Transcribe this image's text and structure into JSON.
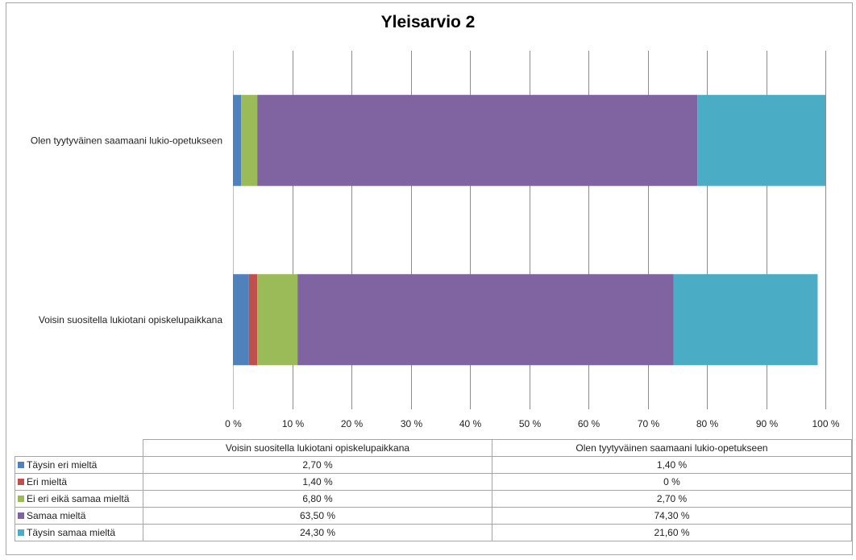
{
  "chart_data": {
    "type": "bar",
    "orientation": "horizontal",
    "stacked": "percent",
    "title": "Yleisarvio 2",
    "xlabel": "",
    "ylabel": "",
    "xlim": [
      0,
      100
    ],
    "grid": true,
    "legend": "data-table-below",
    "x_ticks": [
      "0 %",
      "10 %",
      "20 %",
      "30 %",
      "40 %",
      "50 %",
      "60 %",
      "70 %",
      "80 %",
      "90 %",
      "100 %"
    ],
    "categories": [
      "Voisin suositella lukiotani opiskelupaikkana",
      "Olen tyytyväinen saamaani lukio-opetukseen"
    ],
    "series": [
      {
        "name": "Täysin eri mieltä",
        "color": "#4f81bd",
        "values": [
          2.7,
          1.4
        ],
        "labels": [
          "2,70 %",
          "1,40 %"
        ]
      },
      {
        "name": "Eri mieltä",
        "color": "#c0504d",
        "values": [
          1.4,
          0
        ],
        "labels": [
          "1,40 %",
          "0 %"
        ]
      },
      {
        "name": "Ei eri eikä samaa mieltä",
        "color": "#9bbb59",
        "values": [
          6.8,
          2.7
        ],
        "labels": [
          "6,80 %",
          "2,70 %"
        ]
      },
      {
        "name": "Samaa mieltä",
        "color": "#8064a2",
        "values": [
          63.5,
          74.3
        ],
        "labels": [
          "63,50 %",
          "74,30 %"
        ]
      },
      {
        "name": "Täysin samaa mieltä",
        "color": "#4bacc6",
        "values": [
          24.3,
          21.6
        ],
        "labels": [
          "24,30 %",
          "21,60 %"
        ]
      }
    ]
  }
}
